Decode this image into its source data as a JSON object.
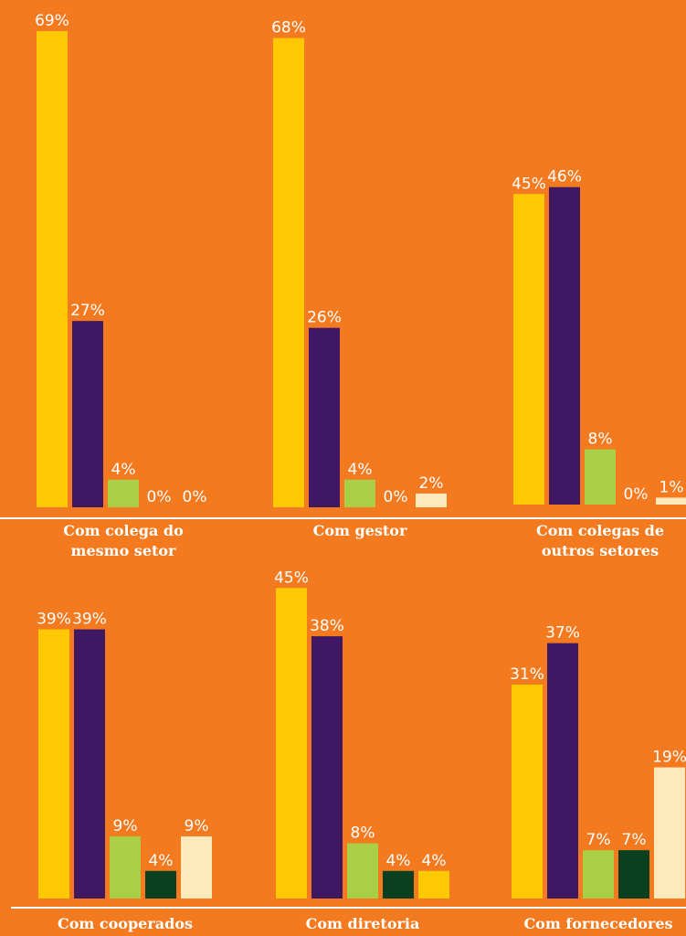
{
  "chart_data": [
    {
      "type": "bar",
      "title": "Com colega do mesmo setor",
      "values": [
        69,
        27,
        4,
        0,
        0
      ],
      "value_labels": [
        "69%",
        "27%",
        "4%",
        "0%",
        "0%"
      ],
      "colors": [
        "#ffc805",
        "#3f1763",
        "#a8cf45",
        "#0a4020",
        "#fde9bc"
      ]
    },
    {
      "type": "bar",
      "title": "Com gestor",
      "values": [
        68,
        26,
        4,
        0,
        2
      ],
      "value_labels": [
        "68%",
        "26%",
        "4%",
        "0%",
        "2%"
      ],
      "colors": [
        "#ffc805",
        "#3f1763",
        "#a8cf45",
        "#0a4020",
        "#fde9bc"
      ]
    },
    {
      "type": "bar",
      "title": "Com colegas de outros setores",
      "values": [
        45,
        46,
        8,
        0,
        1
      ],
      "value_labels": [
        "45%",
        "46%",
        "8%",
        "0%",
        "1%"
      ],
      "colors": [
        "#ffc805",
        "#3f1763",
        "#a8cf45",
        "#0a4020",
        "#fde9bc"
      ]
    },
    {
      "type": "bar",
      "title": "Com cooperados",
      "values": [
        39,
        39,
        9,
        4,
        9
      ],
      "value_labels": [
        "39%",
        "39%",
        "9%",
        "4%",
        "9%"
      ],
      "colors": [
        "#ffc805",
        "#3f1763",
        "#a8cf45",
        "#0a4020",
        "#fde9bc"
      ]
    },
    {
      "type": "bar",
      "title": "Com diretoria",
      "values": [
        45,
        38,
        8,
        4,
        4
      ],
      "value_labels": [
        "45%",
        "38%",
        "8%",
        "4%",
        "4%"
      ],
      "colors": [
        "#ffc805",
        "#3f1763",
        "#a8cf45",
        "#0a4020",
        "#ffc805"
      ]
    },
    {
      "type": "bar",
      "title": "Com fornecedores",
      "values": [
        31,
        37,
        7,
        7,
        19
      ],
      "value_labels": [
        "31%",
        "37%",
        "7%",
        "7%",
        "19%"
      ],
      "colors": [
        "#ffc805",
        "#3f1763",
        "#a8cf45",
        "#0a4020",
        "#fde9bc"
      ]
    }
  ]
}
